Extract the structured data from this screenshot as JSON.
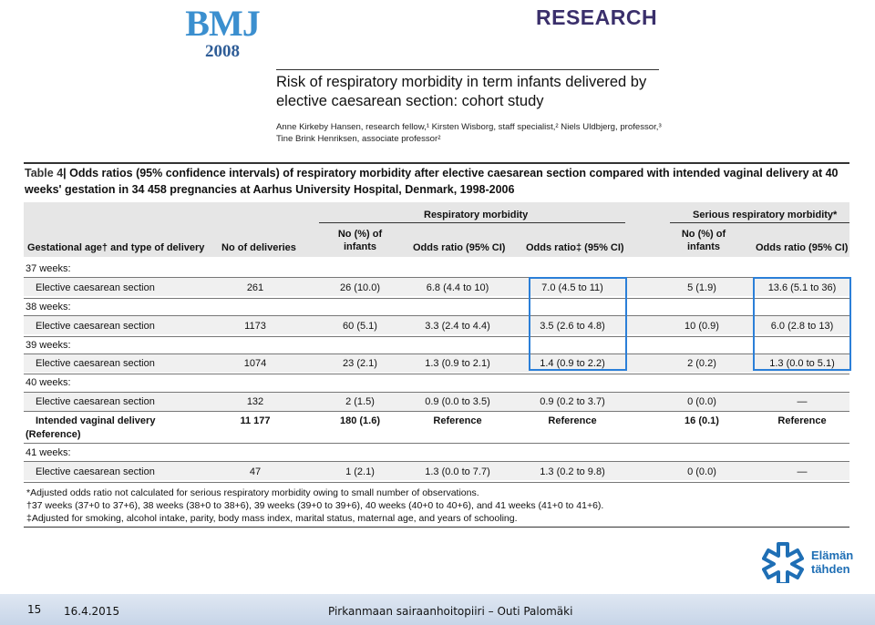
{
  "header": {
    "brand": "BMJ",
    "year": "2008",
    "section": "RESEARCH",
    "paper_title": "Risk of respiratory morbidity in term infants delivered by elective caesarean section: cohort study",
    "authors": "Anne Kirkeby Hansen, research fellow,¹ Kirsten Wisborg, staff specialist,² Niels Uldbjerg, professor,³ Tine Brink Henriksen, associate professor²"
  },
  "table": {
    "label": "Table 4",
    "caption": "Odds ratios (95% confidence intervals) of respiratory morbidity after elective caesarean section compared with intended vaginal delivery at 40 weeks' gestation in 34 458 pregnancies at Aarhus University Hospital, Denmark, 1998-2006",
    "group_headers": {
      "respiratory": "Respiratory morbidity",
      "serious": "Serious respiratory morbidity*"
    },
    "columns": {
      "gestational": "Gestational age† and type of delivery",
      "deliveries": "No of deliveries",
      "resp_infants": "No (%) of infants",
      "resp_or": "Odds ratio (95% CI)",
      "resp_or_adj": "Odds ratio‡ (95% CI)",
      "ser_infants": "No (%) of infants",
      "ser_or": "Odds ratio (95% CI)"
    },
    "groups": [
      {
        "weeks": "37 weeks:",
        "rows": [
          {
            "type": "Elective caesarean section",
            "deliveries": "261",
            "resp_infants": "26 (10.0)",
            "resp_or": "6.8 (4.4 to 10)",
            "resp_or_adj": "7.0 (4.5 to 11)",
            "ser_infants": "5 (1.9)",
            "ser_or": "13.6 (5.1 to 36)"
          }
        ]
      },
      {
        "weeks": "38 weeks:",
        "rows": [
          {
            "type": "Elective caesarean section",
            "deliveries": "1173",
            "resp_infants": "60 (5.1)",
            "resp_or": "3.3 (2.4 to 4.4)",
            "resp_or_adj": "3.5 (2.6 to 4.8)",
            "ser_infants": "10 (0.9)",
            "ser_or": "6.0 (2.8 to 13)"
          }
        ]
      },
      {
        "weeks": "39 weeks:",
        "rows": [
          {
            "type": "Elective caesarean section",
            "deliveries": "1074",
            "resp_infants": "23 (2.1)",
            "resp_or": "1.3 (0.9 to 2.1)",
            "resp_or_adj": "1.4 (0.9 to 2.2)",
            "ser_infants": "2 (0.2)",
            "ser_or": "1.3 (0.0 to 5.1)"
          }
        ]
      },
      {
        "weeks": "40 weeks:",
        "rows": [
          {
            "type": "Elective caesarean section",
            "deliveries": "132",
            "resp_infants": "2 (1.5)",
            "resp_or": "0.9 (0.0 to 3.5)",
            "resp_or_adj": "0.9 (0.2 to 3.7)",
            "ser_infants": "0 (0.0)",
            "ser_or": "—"
          },
          {
            "type": "Intended vaginal delivery",
            "type2": "(Reference)",
            "deliveries": "11 177",
            "resp_infants": "180 (1.6)",
            "resp_or": "Reference",
            "resp_or_adj": "Reference",
            "ser_infants": "16 (0.1)",
            "ser_or": "Reference"
          }
        ]
      },
      {
        "weeks": "41 weeks:",
        "rows": [
          {
            "type": "Elective caesarean section",
            "deliveries": "47",
            "resp_infants": "1 (2.1)",
            "resp_or": "1.3 (0.0 to 7.7)",
            "resp_or_adj": "1.3 (0.2 to 9.8)",
            "ser_infants": "0 (0.0)",
            "ser_or": "—"
          }
        ]
      }
    ],
    "footnotes": [
      "*Adjusted odds ratio not calculated for serious respiratory morbidity owing to small number of observations.",
      "†37 weeks (37+0 to 37+6), 38 weeks (38+0 to 38+6), 39 weeks (39+0 to 39+6), 40 weeks (40+0 to 40+6), and 41 weeks (41+0 to 41+6).",
      "‡Adjusted for smoking, alcohol intake, parity, body mass index, marital status, maternal age, and years of schooling."
    ]
  },
  "logo": {
    "line1": "Elämän",
    "line2": "tähden",
    "mark": "star-of-life"
  },
  "footer": {
    "page_number": "15",
    "date": "16.4.2015",
    "credit": "Pirkanmaan sairaanhoitopiiri  –  Outi Palomäki"
  },
  "colors": {
    "highlight": "#2b7fd8",
    "bmj_blue": "#3b8fcf",
    "research_purple": "#3a2f6b",
    "logo_blue": "#1f6fb5"
  }
}
